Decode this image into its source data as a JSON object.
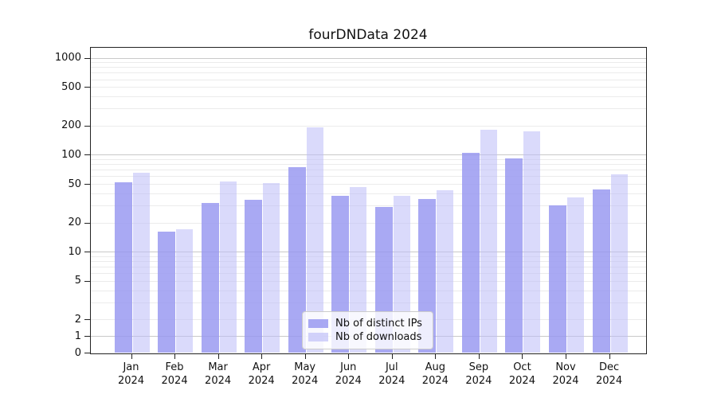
{
  "chart_data": {
    "type": "bar",
    "title": "fourDNData 2024",
    "categories": [
      "Jan 2024",
      "Feb 2024",
      "Mar 2024",
      "Apr 2024",
      "May 2024",
      "Jun 2024",
      "Jul 2024",
      "Aug 2024",
      "Sep 2024",
      "Oct 2024",
      "Nov 2024",
      "Dec 2024"
    ],
    "series": [
      {
        "name": "Nb of distinct IPs",
        "color": "#9696f0",
        "fill_opacity": 0.82,
        "values": [
          52,
          16,
          32,
          34,
          74,
          38,
          29,
          35,
          105,
          92,
          30,
          44
        ]
      },
      {
        "name": "Nb of downloads",
        "color": "#bbbbf7",
        "fill_opacity": 0.55,
        "values": [
          65,
          17,
          53,
          51,
          190,
          46,
          38,
          43,
          182,
          175,
          36,
          63
        ]
      }
    ],
    "y_ticks": [
      0,
      1,
      2,
      5,
      10,
      20,
      50,
      100,
      200,
      500,
      1000
    ],
    "yscale": "symlog (logarithmic above 2, linear between 0 and 2)",
    "ylim": [
      0,
      1270
    ],
    "xlabel": "",
    "ylabel": "",
    "grid": "horizontal major and minor gridlines",
    "legend_position": "lower center inside plot"
  },
  "colors": {
    "bar_distinct_ips": "#9696f0",
    "bar_downloads": "#bbbbf7",
    "grid_major": "#c9c9c9",
    "grid_minor": "#ebebeb",
    "spine": "#222222",
    "background": "#ffffff"
  }
}
